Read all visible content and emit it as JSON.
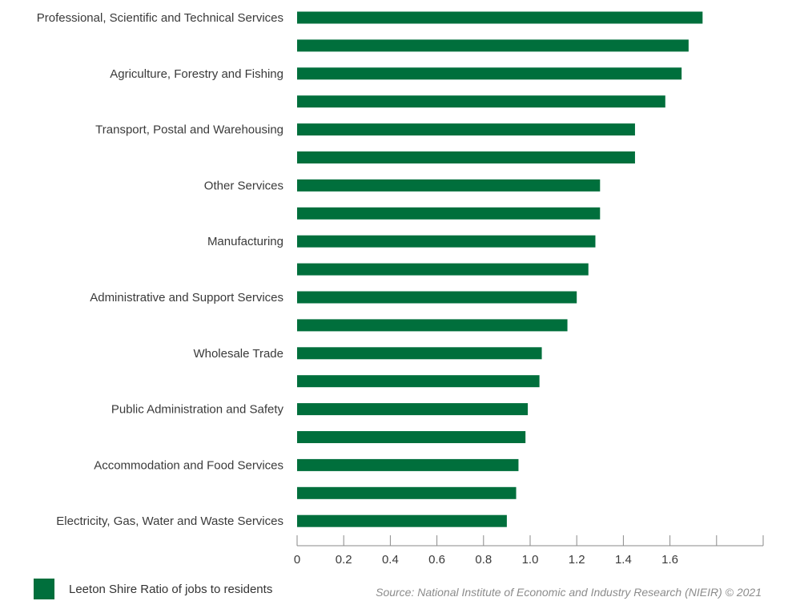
{
  "chart_data": {
    "type": "bar",
    "orientation": "horizontal",
    "categories": [
      "Professional, Scientific and Technical Services",
      "",
      "Agriculture, Forestry and Fishing",
      "",
      "Transport, Postal and Warehousing",
      "",
      "Other Services",
      "",
      "Manufacturing",
      "",
      "Administrative and Support Services",
      "",
      "Wholesale Trade",
      "",
      "Public Administration and Safety",
      "",
      "Accommodation and Food Services",
      "",
      "Electricity, Gas, Water and Waste Services"
    ],
    "series": [
      {
        "name": "Leeton Shire Ratio of jobs to residents",
        "color": "#006f3c",
        "values": [
          1.74,
          1.68,
          1.65,
          1.58,
          1.45,
          1.45,
          1.3,
          1.3,
          1.28,
          1.25,
          1.2,
          1.16,
          1.05,
          1.04,
          0.99,
          0.98,
          0.95,
          0.94,
          0.9
        ]
      }
    ],
    "xlim": [
      0,
      2.0
    ],
    "xticks": [
      0,
      0.2,
      0.4,
      0.6,
      0.8,
      1.0,
      1.2,
      1.4,
      1.6,
      1.8,
      2.0
    ],
    "xtick_labels": [
      "0",
      "0.2",
      "0.4",
      "0.6",
      "0.8",
      "1.0",
      "1.2",
      "1.4",
      "1.6",
      "",
      ""
    ],
    "title": "",
    "xlabel": "",
    "ylabel": "",
    "grid": false,
    "legend": "bottom-left"
  },
  "legend": {
    "label": "Leeton Shire Ratio of jobs to residents",
    "color": "#006f3c"
  },
  "source": "Source: National Institute of Economic and Industry Research (NIEIR) © 2021"
}
